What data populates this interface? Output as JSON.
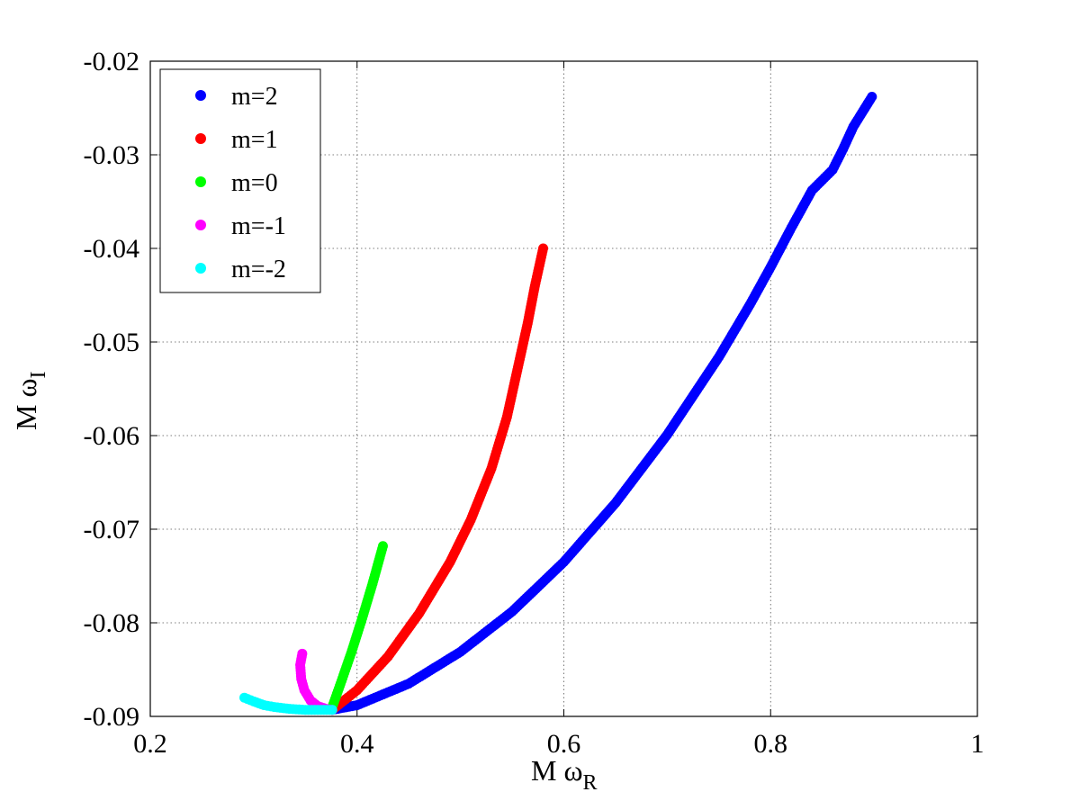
{
  "chart_data": {
    "type": "scatter",
    "title": "",
    "xlabel": "M ω",
    "xlabel_sub": "R",
    "ylabel": "M ω",
    "ylabel_sub": "I",
    "xlim": [
      0.2,
      1.0
    ],
    "ylim": [
      -0.09,
      -0.02
    ],
    "xticks": [
      0.2,
      0.4,
      0.6,
      0.8,
      1.0
    ],
    "xtick_labels": [
      "0.2",
      "0.4",
      "0.6",
      "0.8",
      "1"
    ],
    "yticks": [
      -0.09,
      -0.08,
      -0.07,
      -0.06,
      -0.05,
      -0.04,
      -0.03,
      -0.02
    ],
    "ytick_labels": [
      "-0.09",
      "-0.08",
      "-0.07",
      "-0.06",
      "-0.05",
      "-0.04",
      "-0.03",
      "-0.02"
    ],
    "grid": true,
    "legend_position": "top-left",
    "series": [
      {
        "name": "m=2",
        "color": "#0000ff",
        "x": [
          0.376,
          0.4,
          0.45,
          0.5,
          0.55,
          0.6,
          0.65,
          0.7,
          0.75,
          0.78,
          0.8,
          0.82,
          0.84,
          0.86,
          0.87,
          0.88,
          0.898
        ],
        "y": [
          -0.0893,
          -0.0888,
          -0.0865,
          -0.0831,
          -0.0788,
          -0.0735,
          -0.0672,
          -0.0599,
          -0.0516,
          -0.046,
          -0.042,
          -0.0378,
          -0.0338,
          -0.0316,
          -0.0294,
          -0.027,
          -0.0238
        ]
      },
      {
        "name": "m=1",
        "color": "#ff0000",
        "x": [
          0.376,
          0.4,
          0.43,
          0.46,
          0.49,
          0.51,
          0.53,
          0.545,
          0.555,
          0.565,
          0.572,
          0.577,
          0.58
        ],
        "y": [
          -0.0893,
          -0.0872,
          -0.0836,
          -0.079,
          -0.0735,
          -0.069,
          -0.0635,
          -0.058,
          -0.053,
          -0.048,
          -0.044,
          -0.0415,
          -0.04
        ]
      },
      {
        "name": "m=0",
        "color": "#00ff00",
        "x": [
          0.376,
          0.385,
          0.395,
          0.405,
          0.415,
          0.422,
          0.425
        ],
        "y": [
          -0.089,
          -0.0862,
          -0.083,
          -0.0795,
          -0.0758,
          -0.073,
          -0.0718
        ]
      },
      {
        "name": "m=-1",
        "color": "#ff00ff",
        "x": [
          0.347,
          0.345,
          0.346,
          0.349,
          0.355,
          0.362,
          0.37,
          0.376
        ],
        "y": [
          -0.0833,
          -0.0845,
          -0.086,
          -0.0872,
          -0.0883,
          -0.0889,
          -0.0892,
          -0.0893
        ]
      },
      {
        "name": "m=-2",
        "color": "#00ffff",
        "x": [
          0.291,
          0.3,
          0.31,
          0.32,
          0.335,
          0.35,
          0.365,
          0.376
        ],
        "y": [
          -0.088,
          -0.0884,
          -0.0888,
          -0.089,
          -0.0892,
          -0.0893,
          -0.0893,
          -0.0893
        ]
      }
    ]
  }
}
